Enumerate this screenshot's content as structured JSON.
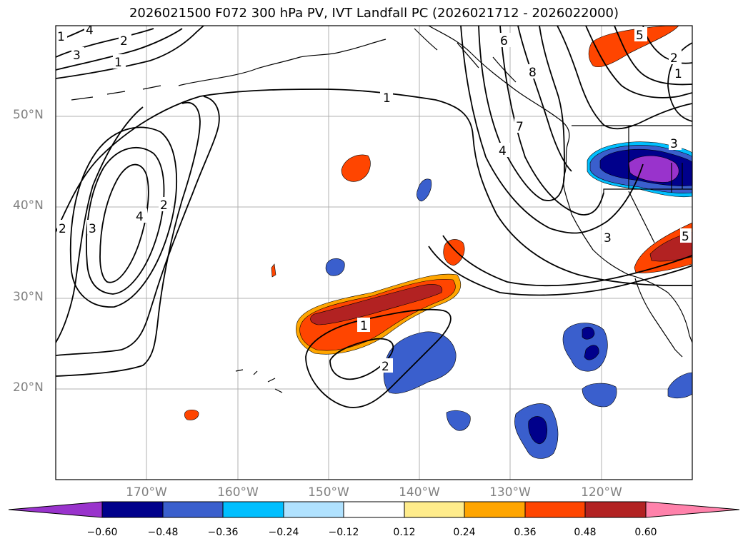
{
  "title": "2026021500 F072 300 hPa PV, IVT Landfall PC (2026021712 - 2026022000)",
  "lat_labels": [
    "50°N",
    "40°N",
    "30°N",
    "20°N"
  ],
  "lon_labels": [
    "170°W",
    "160°W",
    "150°W",
    "140°W",
    "130°W",
    "120°W"
  ],
  "pv_contour_labels": [
    "1",
    "1",
    "2",
    "2",
    "3",
    "3",
    "4",
    "4",
    "5",
    "6",
    "7",
    "8",
    "1",
    "2",
    "3",
    "2",
    "1",
    "1",
    "2",
    "3",
    "4",
    "5"
  ],
  "colorbar": {
    "ticks": [
      "−0.60",
      "−0.48",
      "−0.36",
      "−0.24",
      "−0.12",
      "0.12",
      "0.24",
      "0.36",
      "0.48",
      "0.60"
    ],
    "colors": [
      "#9933cc",
      "#00008b",
      "#3a5fcd",
      "#00bfff",
      "#b0e2ff",
      "#ffffff",
      "#ffec8b",
      "#ffa500",
      "#ff4500",
      "#b22222",
      "#ff82ab"
    ]
  }
}
